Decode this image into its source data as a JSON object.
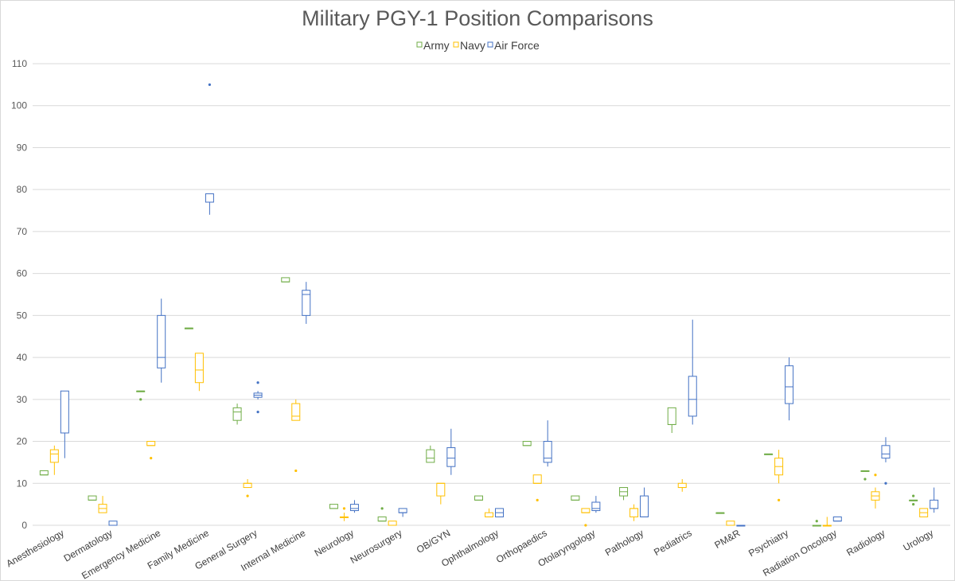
{
  "chart_data": {
    "type": "box",
    "title": "Military PGY-1 Position Comparisons",
    "xlabel": "",
    "ylabel": "",
    "ylim": [
      0,
      110
    ],
    "yticks": [
      0,
      10,
      20,
      30,
      40,
      50,
      60,
      70,
      80,
      90,
      100,
      110
    ],
    "grid": true,
    "legend_position": "top-center",
    "categories": [
      "Anesthesiology",
      "Dermatology",
      "Emergency Medicine",
      "Family Medicine",
      "General Surgery",
      "Internal Medicine",
      "Neurology",
      "Neurosurgery",
      "OB/GYN",
      "Ophthalmology",
      "Orthopaedics",
      "Otolaryngology",
      "Pathology",
      "Pediatrics",
      "PM&R",
      "Psychiatry",
      "Radiation Oncology",
      "Radiology",
      "Urology"
    ],
    "series": [
      {
        "name": "Army",
        "color": "#70ad47",
        "boxes": [
          {
            "min": 12,
            "q1": 12,
            "median": 12,
            "q3": 13,
            "max": 13,
            "outliers": []
          },
          {
            "min": 6,
            "q1": 6,
            "median": 6,
            "q3": 7,
            "max": 7,
            "outliers": []
          },
          {
            "min": 32,
            "q1": 32,
            "median": 32,
            "q3": 32,
            "max": 32,
            "outliers": [
              30
            ]
          },
          {
            "min": 47,
            "q1": 47,
            "median": 47,
            "q3": 47,
            "max": 47,
            "outliers": []
          },
          {
            "min": 24,
            "q1": 25,
            "median": 27,
            "q3": 28,
            "max": 29,
            "outliers": []
          },
          {
            "min": 58,
            "q1": 58,
            "median": 58,
            "q3": 59,
            "max": 59,
            "outliers": []
          },
          {
            "min": 4,
            "q1": 4,
            "median": 4,
            "q3": 5,
            "max": 5,
            "outliers": []
          },
          {
            "min": 1,
            "q1": 1,
            "median": 1,
            "q3": 2,
            "max": 2,
            "outliers": [
              4
            ]
          },
          {
            "min": 15,
            "q1": 15,
            "median": 16,
            "q3": 18,
            "max": 19,
            "outliers": []
          },
          {
            "min": 6,
            "q1": 6,
            "median": 6,
            "q3": 7,
            "max": 7,
            "outliers": []
          },
          {
            "min": 19,
            "q1": 19,
            "median": 19,
            "q3": 20,
            "max": 20,
            "outliers": []
          },
          {
            "min": 6,
            "q1": 6,
            "median": 6,
            "q3": 7,
            "max": 7,
            "outliers": []
          },
          {
            "min": 6,
            "q1": 7,
            "median": 8,
            "q3": 9,
            "max": 9,
            "outliers": []
          },
          {
            "min": 22,
            "q1": 24,
            "median": 24,
            "q3": 28,
            "max": 28,
            "outliers": []
          },
          {
            "min": 3,
            "q1": 3,
            "median": 3,
            "q3": 3,
            "max": 3,
            "outliers": []
          },
          {
            "min": 17,
            "q1": 17,
            "median": 17,
            "q3": 17,
            "max": 17,
            "outliers": []
          },
          {
            "min": 0,
            "q1": 0,
            "median": 0,
            "q3": 0,
            "max": 0,
            "outliers": [
              1
            ]
          },
          {
            "min": 13,
            "q1": 13,
            "median": 13,
            "q3": 13,
            "max": 13,
            "outliers": [
              11
            ]
          },
          {
            "min": 6,
            "q1": 6,
            "median": 6,
            "q3": 6,
            "max": 6,
            "outliers": [
              7,
              5
            ]
          }
        ]
      },
      {
        "name": "Navy",
        "color": "#ffc000",
        "boxes": [
          {
            "min": 12,
            "q1": 15,
            "median": 17,
            "q3": 18,
            "max": 19,
            "outliers": []
          },
          {
            "min": 3,
            "q1": 3,
            "median": 4,
            "q3": 5,
            "max": 7,
            "outliers": []
          },
          {
            "min": 19,
            "q1": 19,
            "median": 19,
            "q3": 20,
            "max": 20,
            "outliers": [
              16
            ]
          },
          {
            "min": 32,
            "q1": 34,
            "median": 37,
            "q3": 41,
            "max": 41,
            "outliers": []
          },
          {
            "min": 9,
            "q1": 9,
            "median": 10,
            "q3": 10,
            "max": 11,
            "outliers": [
              7
            ]
          },
          {
            "min": 25,
            "q1": 25,
            "median": 26,
            "q3": 29,
            "max": 30,
            "outliers": [
              13
            ]
          },
          {
            "min": 1,
            "q1": 2,
            "median": 2,
            "q3": 2,
            "max": 3,
            "outliers": [
              4
            ]
          },
          {
            "min": 0,
            "q1": 0,
            "median": 0,
            "q3": 1,
            "max": 1,
            "outliers": []
          },
          {
            "min": 5,
            "q1": 7,
            "median": 10,
            "q3": 10,
            "max": 10,
            "outliers": []
          },
          {
            "min": 2,
            "q1": 2,
            "median": 2,
            "q3": 3,
            "max": 4,
            "outliers": []
          },
          {
            "min": 10,
            "q1": 10,
            "median": 10,
            "q3": 12,
            "max": 12,
            "outliers": [
              6
            ]
          },
          {
            "min": 3,
            "q1": 3,
            "median": 3,
            "q3": 4,
            "max": 4,
            "outliers": [
              0
            ]
          },
          {
            "min": 1,
            "q1": 2,
            "median": 4,
            "q3": 4,
            "max": 5,
            "outliers": []
          },
          {
            "min": 8,
            "q1": 9,
            "median": 9,
            "q3": 10,
            "max": 11,
            "outliers": []
          },
          {
            "min": 0,
            "q1": 0,
            "median": 0,
            "q3": 1,
            "max": 1,
            "outliers": []
          },
          {
            "min": 10,
            "q1": 12,
            "median": 14,
            "q3": 16,
            "max": 18,
            "outliers": [
              6
            ]
          },
          {
            "min": 0,
            "q1": 0,
            "median": 0,
            "q3": 0,
            "max": 2,
            "outliers": []
          },
          {
            "min": 4,
            "q1": 6,
            "median": 7,
            "q3": 8,
            "max": 9,
            "outliers": [
              12
            ]
          },
          {
            "min": 2,
            "q1": 2,
            "median": 3,
            "q3": 4,
            "max": 4,
            "outliers": []
          }
        ]
      },
      {
        "name": "Air Force",
        "color": "#4472c4",
        "boxes": [
          {
            "min": 16,
            "q1": 22,
            "median": 22,
            "q3": 32,
            "max": 32,
            "outliers": []
          },
          {
            "min": 0,
            "q1": 0,
            "median": 0,
            "q3": 1,
            "max": 1,
            "outliers": []
          },
          {
            "min": 34,
            "q1": 37.5,
            "median": 40,
            "q3": 50,
            "max": 54,
            "outliers": []
          },
          {
            "min": 74,
            "q1": 77,
            "median": 77,
            "q3": 79,
            "max": 79,
            "outliers": [
              105
            ]
          },
          {
            "min": 30,
            "q1": 30.5,
            "median": 31,
            "q3": 31.5,
            "max": 32,
            "outliers": [
              34,
              27
            ]
          },
          {
            "min": 48,
            "q1": 50,
            "median": 55,
            "q3": 56,
            "max": 58,
            "outliers": []
          },
          {
            "min": 3,
            "q1": 3.5,
            "median": 4,
            "q3": 5,
            "max": 6,
            "outliers": []
          },
          {
            "min": 2,
            "q1": 3,
            "median": 3,
            "q3": 4,
            "max": 4,
            "outliers": []
          },
          {
            "min": 12,
            "q1": 14,
            "median": 16,
            "q3": 18.5,
            "max": 23,
            "outliers": []
          },
          {
            "min": 2,
            "q1": 2,
            "median": 3,
            "q3": 4,
            "max": 4,
            "outliers": []
          },
          {
            "min": 14,
            "q1": 15,
            "median": 16,
            "q3": 20,
            "max": 25,
            "outliers": []
          },
          {
            "min": 3,
            "q1": 3.5,
            "median": 4,
            "q3": 5.5,
            "max": 7,
            "outliers": []
          },
          {
            "min": 2,
            "q1": 2,
            "median": 2,
            "q3": 7,
            "max": 9,
            "outliers": []
          },
          {
            "min": 24,
            "q1": 26,
            "median": 30,
            "q3": 35.5,
            "max": 49,
            "outliers": []
          },
          {
            "min": 0,
            "q1": 0,
            "median": 0,
            "q3": 0,
            "max": 0,
            "outliers": []
          },
          {
            "min": 25,
            "q1": 29,
            "median": 33,
            "q3": 38,
            "max": 40,
            "outliers": []
          },
          {
            "min": 1,
            "q1": 1,
            "median": 1,
            "q3": 2,
            "max": 2,
            "outliers": []
          },
          {
            "min": 15,
            "q1": 16,
            "median": 17,
            "q3": 19,
            "max": 21,
            "outliers": [
              10
            ]
          },
          {
            "min": 3,
            "q1": 4,
            "median": 4,
            "q3": 6,
            "max": 9,
            "outliers": []
          }
        ]
      }
    ]
  }
}
